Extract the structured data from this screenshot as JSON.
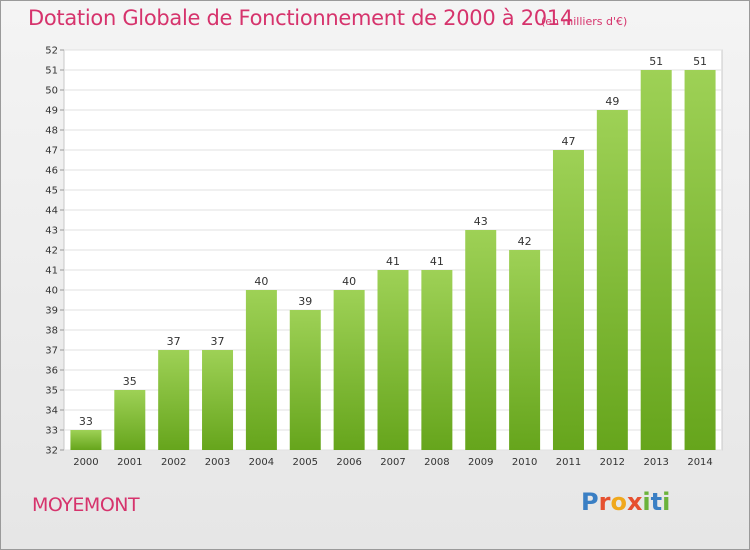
{
  "title": "Dotation Globale de Fonctionnement de 2000 à 2014",
  "subtitle": "(en milliers d'€)",
  "commune": "MOYEMONT",
  "logo": {
    "text": "Proxiti"
  },
  "colors": {
    "accent": "#d6336c",
    "bar_top": "#9ed156",
    "bar_bottom": "#66a51c"
  },
  "chart_data": {
    "type": "bar",
    "title": "Dotation Globale de Fonctionnement de 2000 à 2014",
    "subtitle": "(en milliers d'€)",
    "categories": [
      "2000",
      "2001",
      "2002",
      "2003",
      "2004",
      "2005",
      "2006",
      "2007",
      "2008",
      "2009",
      "2010",
      "2011",
      "2012",
      "2013",
      "2014"
    ],
    "values": [
      33,
      35,
      37,
      37,
      40,
      39,
      40,
      41,
      41,
      43,
      42,
      47,
      49,
      51,
      51
    ],
    "ylim": [
      32,
      52
    ],
    "yticks": [
      32,
      33,
      34,
      35,
      36,
      37,
      38,
      39,
      40,
      41,
      42,
      43,
      44,
      45,
      46,
      47,
      48,
      49,
      50,
      51,
      52
    ],
    "grid": true,
    "xlabel": "",
    "ylabel": ""
  }
}
